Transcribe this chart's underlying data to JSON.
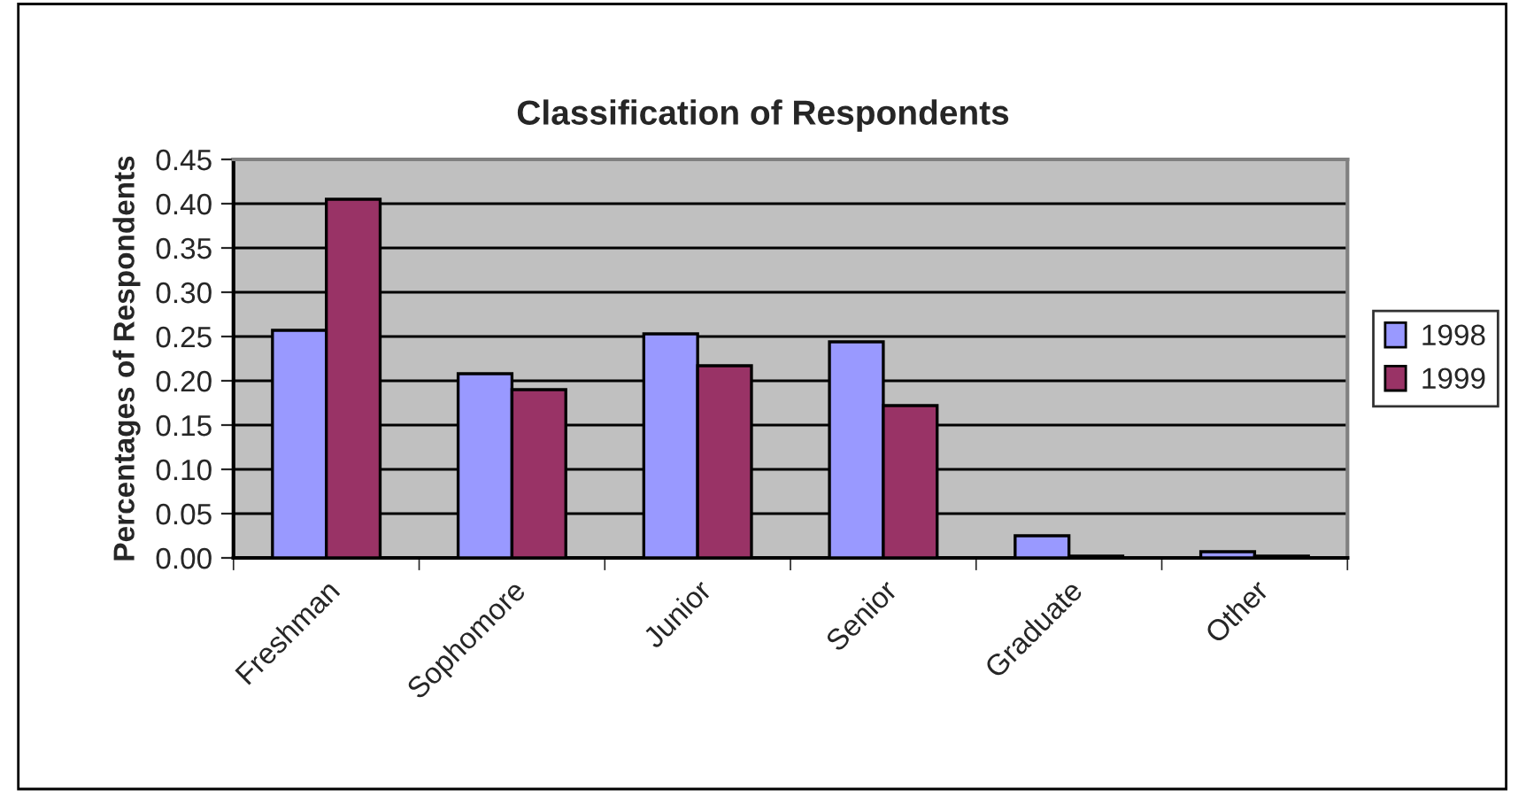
{
  "chart_data": {
    "type": "bar",
    "title": "Classification of Respondents",
    "ylabel": "Percentages of Respondents",
    "categories": [
      "Freshman",
      "Sophomore",
      "Junior",
      "Senior",
      "Graduate",
      "Other"
    ],
    "series": [
      {
        "name": "1998",
        "color": "#9999ff",
        "values": [
          0.257,
          0.208,
          0.253,
          0.244,
          0.025,
          0.007
        ]
      },
      {
        "name": "1999",
        "color": "#993366",
        "values": [
          0.405,
          0.19,
          0.217,
          0.172,
          0.002,
          0.002
        ]
      }
    ],
    "ylim": [
      0,
      0.45
    ],
    "yticks": [
      {
        "value": 0,
        "label": "0.00"
      },
      {
        "value": 0.05,
        "label": "0.05"
      },
      {
        "value": 0.1,
        "label": "0.10"
      },
      {
        "value": 0.15,
        "label": "0.15"
      },
      {
        "value": 0.2,
        "label": "0.20"
      },
      {
        "value": 0.25,
        "label": "0.25"
      },
      {
        "value": 0.3,
        "label": "0.30"
      },
      {
        "value": 0.35,
        "label": "0.35"
      },
      {
        "value": 0.4,
        "label": "0.40"
      },
      {
        "value": 0.45,
        "label": "0.45"
      }
    ],
    "grid": "y",
    "legend": "right"
  }
}
